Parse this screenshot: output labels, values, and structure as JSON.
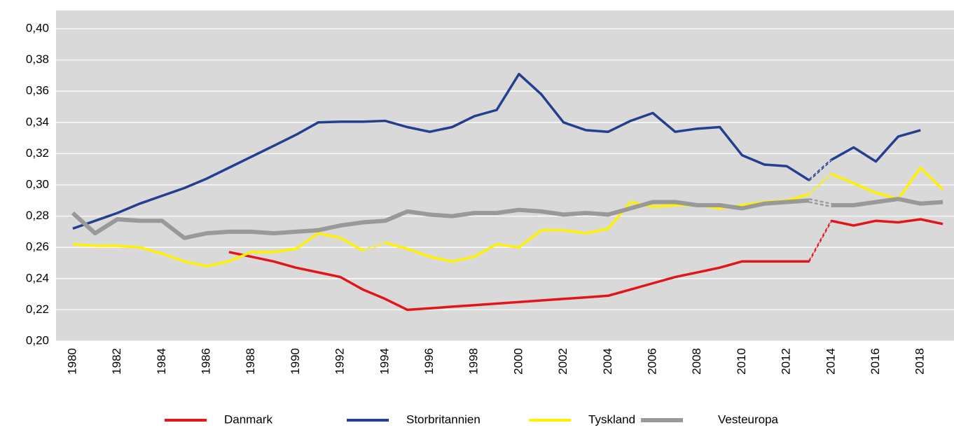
{
  "chart_data": {
    "type": "line",
    "categories": [
      "1980",
      null,
      "1982",
      null,
      "1984",
      null,
      "1986",
      null,
      "1988",
      null,
      "1990",
      null,
      "1992",
      null,
      "1994",
      null,
      "1996",
      null,
      "1998",
      null,
      "2000",
      null,
      "2002",
      null,
      "2004",
      null,
      "2006",
      null,
      "2008",
      null,
      "2010",
      null,
      "2012",
      null,
      "2014",
      null,
      "2016",
      null,
      "2018",
      null
    ],
    "ylim": [
      0.2,
      0.4
    ],
    "yticks": [
      {
        "value": 0.2,
        "label": "0,20"
      },
      {
        "value": 0.22,
        "label": "0,22"
      },
      {
        "value": 0.24,
        "label": "0,24"
      },
      {
        "value": 0.26,
        "label": "0,26"
      },
      {
        "value": 0.28,
        "label": "0,28"
      },
      {
        "value": 0.3,
        "label": "0,30"
      },
      {
        "value": 0.32,
        "label": "0,32"
      },
      {
        "value": 0.34,
        "label": "0,34"
      },
      {
        "value": 0.36,
        "label": "0,36"
      },
      {
        "value": 0.38,
        "label": "0,38"
      },
      {
        "value": 0.4,
        "label": "0,40"
      }
    ],
    "grid": true,
    "legend": "bottom",
    "series": [
      {
        "name": "Danmark",
        "color": "#e3151a",
        "dashed_segments": [
          33
        ],
        "values": [
          null,
          null,
          null,
          null,
          null,
          null,
          null,
          0.257,
          0.254,
          0.251,
          0.247,
          0.244,
          0.241,
          0.233,
          0.227,
          0.22,
          0.221,
          0.222,
          0.223,
          0.224,
          0.225,
          0.226,
          0.227,
          0.228,
          0.229,
          0.233,
          0.237,
          0.241,
          0.244,
          0.247,
          0.251,
          0.251,
          0.251,
          0.251,
          0.277,
          0.274,
          0.277,
          0.276,
          0.278,
          0.275
        ]
      },
      {
        "name": "Storbritannien",
        "color": "#233f8f",
        "dashed_segments": [
          33
        ],
        "values": [
          0.272,
          0.277,
          0.282,
          0.288,
          0.293,
          0.298,
          0.304,
          0.311,
          0.318,
          0.325,
          0.332,
          0.34,
          0.3405,
          0.3405,
          0.341,
          0.337,
          0.334,
          0.337,
          0.344,
          0.348,
          0.371,
          0.358,
          0.34,
          0.335,
          0.334,
          0.341,
          0.346,
          0.334,
          0.336,
          0.337,
          0.319,
          0.313,
          0.312,
          0.303,
          0.316,
          0.324,
          0.315,
          0.331,
          0.335,
          null
        ]
      },
      {
        "name": "Tyskland",
        "color": "#fff200",
        "dashed_segments": [
          13,
          33
        ],
        "values": [
          0.262,
          0.261,
          0.261,
          0.26,
          0.256,
          0.251,
          0.248,
          0.251,
          0.257,
          0.257,
          0.259,
          0.269,
          0.266,
          0.258,
          0.263,
          0.259,
          0.254,
          0.251,
          0.254,
          0.262,
          0.26,
          0.271,
          0.271,
          0.269,
          0.272,
          0.289,
          0.286,
          0.287,
          0.287,
          0.285,
          0.287,
          0.289,
          0.29,
          0.294,
          0.307,
          0.301,
          0.295,
          0.291,
          0.311,
          0.297
        ]
      },
      {
        "name": "Vesteuropa",
        "color": "#999999",
        "dashed_segments": [
          33
        ],
        "values": [
          0.282,
          0.269,
          0.278,
          0.277,
          0.277,
          0.266,
          0.269,
          0.27,
          0.27,
          0.269,
          0.27,
          0.271,
          0.274,
          0.276,
          0.277,
          0.283,
          0.281,
          0.28,
          0.282,
          0.282,
          0.284,
          0.283,
          0.281,
          0.282,
          0.281,
          0.285,
          0.289,
          0.289,
          0.287,
          0.287,
          0.285,
          0.288,
          0.289,
          0.29,
          0.287,
          0.287,
          0.289,
          0.291,
          0.288,
          0.289
        ]
      }
    ]
  }
}
